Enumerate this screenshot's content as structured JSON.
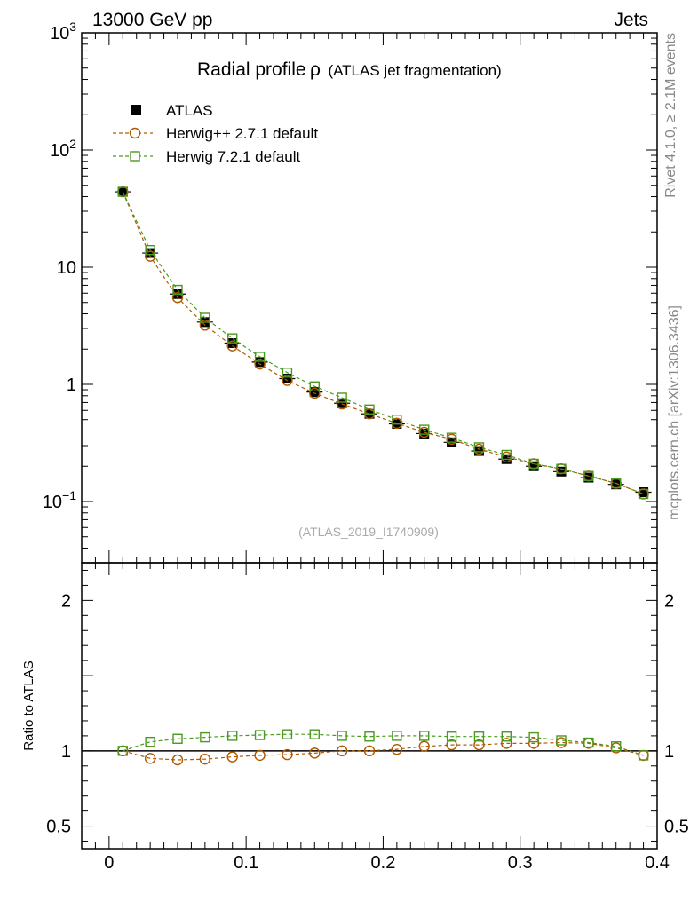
{
  "header": {
    "left": "13000 GeV pp",
    "right": "Jets"
  },
  "title_main": "Radial profile",
  "title_symbol": "ρ",
  "title_sub": "(ATLAS jet fragmentation)",
  "watermark": "(ATLAS_2019_I1740909)",
  "side_top": "Rivet 4.1.0, ≥ 2.1M events",
  "side_bottom": "mcplots.cern.ch [arXiv:1306.3436]",
  "colors": {
    "data": "#000000",
    "herwigpp": "#b05a00",
    "herwig7": "#4a9a1e"
  },
  "legend": [
    {
      "label": "ATLAS",
      "marker": "filled-square",
      "color": "#000000"
    },
    {
      "label": "Herwig++ 2.7.1 default",
      "marker": "open-circle",
      "color": "#b05a00"
    },
    {
      "label": "Herwig 7.2.1 default",
      "marker": "open-square",
      "color": "#4a9a1e"
    }
  ],
  "chart_data": {
    "type": "scatter",
    "xlim": [
      -0.02,
      0.4
    ],
    "x": [
      0.01,
      0.03,
      0.05,
      0.07,
      0.09,
      0.11,
      0.13,
      0.15,
      0.17,
      0.19,
      0.21,
      0.23,
      0.25,
      0.27,
      0.29,
      0.31,
      0.33,
      0.35,
      0.37,
      0.39
    ],
    "main": {
      "yscale": "log",
      "ylim": [
        0.03,
        1000
      ],
      "ytick_labels": [
        "10^-1",
        "1",
        "10",
        "10^2",
        "10^3"
      ],
      "series": [
        {
          "name": "ATLAS",
          "values": [
            44,
            13.2,
            5.9,
            3.4,
            2.25,
            1.55,
            1.12,
            0.86,
            0.69,
            0.56,
            0.46,
            0.38,
            0.32,
            0.27,
            0.23,
            0.2,
            0.18,
            0.16,
            0.14,
            0.12
          ]
        },
        {
          "name": "Herwig++ 2.7.1 default",
          "values": [
            44,
            12.4,
            5.5,
            3.2,
            2.13,
            1.49,
            1.08,
            0.84,
            0.68,
            0.56,
            0.465,
            0.39,
            0.34,
            0.28,
            0.24,
            0.21,
            0.19,
            0.165,
            0.143,
            0.116
          ]
        },
        {
          "name": "Herwig 7.2.1 default",
          "values": [
            44,
            14.0,
            6.4,
            3.7,
            2.47,
            1.72,
            1.26,
            0.96,
            0.77,
            0.61,
            0.5,
            0.41,
            0.35,
            0.29,
            0.25,
            0.21,
            0.19,
            0.165,
            0.143,
            0.116
          ]
        }
      ]
    },
    "ratio": {
      "ylabel": "Ratio to ATLAS",
      "ylim": [
        0.35,
        2.25
      ],
      "ytick_labels": [
        "0.5",
        "1",
        "2"
      ],
      "xtick_labels": [
        "0",
        "0.1",
        "0.2",
        "0.3",
        "0.4"
      ],
      "series": [
        {
          "name": "Herwig++ 2.7.1 default",
          "values": [
            1.0,
            0.95,
            0.94,
            0.945,
            0.96,
            0.97,
            0.975,
            0.985,
            1.0,
            1.0,
            1.01,
            1.03,
            1.04,
            1.04,
            1.05,
            1.05,
            1.055,
            1.05,
            1.02,
            0.97
          ]
        },
        {
          "name": "Herwig 7.2.1 default",
          "values": [
            1.0,
            1.06,
            1.08,
            1.09,
            1.1,
            1.105,
            1.11,
            1.11,
            1.1,
            1.095,
            1.1,
            1.1,
            1.095,
            1.095,
            1.095,
            1.09,
            1.07,
            1.055,
            1.03,
            0.97
          ]
        }
      ]
    }
  }
}
